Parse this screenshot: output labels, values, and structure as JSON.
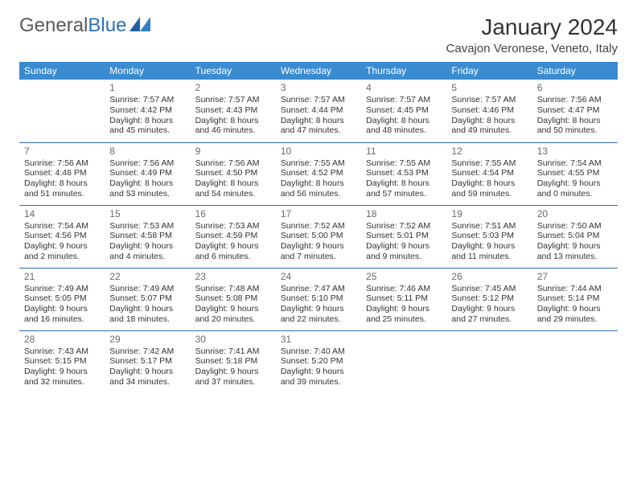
{
  "brand": {
    "part1": "General",
    "part2": "Blue"
  },
  "title": "January 2024",
  "location": "Cavajon Veronese, Veneto, Italy",
  "colors": {
    "header_bg": "#3b8bd0",
    "header_text": "#ffffff",
    "row_separator": "#2f6fb0",
    "body_text": "#333333",
    "daynum_text": "#6a6a6a",
    "brand_gray": "#5a5a5a",
    "brand_blue": "#2f6fb0",
    "background": "#ffffff"
  },
  "typography": {
    "title_fontsize": 28,
    "location_fontsize": 15,
    "dayheader_fontsize": 12,
    "cell_fontsize": 10.5,
    "font_family": "Arial"
  },
  "day_headers": [
    "Sunday",
    "Monday",
    "Tuesday",
    "Wednesday",
    "Thursday",
    "Friday",
    "Saturday"
  ],
  "weeks": [
    [
      {
        "empty": true
      },
      {
        "n": "1",
        "sunrise": "7:57 AM",
        "sunset": "4:42 PM",
        "dl1": "Daylight: 8 hours",
        "dl2": "and 45 minutes."
      },
      {
        "n": "2",
        "sunrise": "7:57 AM",
        "sunset": "4:43 PM",
        "dl1": "Daylight: 8 hours",
        "dl2": "and 46 minutes."
      },
      {
        "n": "3",
        "sunrise": "7:57 AM",
        "sunset": "4:44 PM",
        "dl1": "Daylight: 8 hours",
        "dl2": "and 47 minutes."
      },
      {
        "n": "4",
        "sunrise": "7:57 AM",
        "sunset": "4:45 PM",
        "dl1": "Daylight: 8 hours",
        "dl2": "and 48 minutes."
      },
      {
        "n": "5",
        "sunrise": "7:57 AM",
        "sunset": "4:46 PM",
        "dl1": "Daylight: 8 hours",
        "dl2": "and 49 minutes."
      },
      {
        "n": "6",
        "sunrise": "7:56 AM",
        "sunset": "4:47 PM",
        "dl1": "Daylight: 8 hours",
        "dl2": "and 50 minutes."
      }
    ],
    [
      {
        "n": "7",
        "sunrise": "7:56 AM",
        "sunset": "4:48 PM",
        "dl1": "Daylight: 8 hours",
        "dl2": "and 51 minutes."
      },
      {
        "n": "8",
        "sunrise": "7:56 AM",
        "sunset": "4:49 PM",
        "dl1": "Daylight: 8 hours",
        "dl2": "and 53 minutes."
      },
      {
        "n": "9",
        "sunrise": "7:56 AM",
        "sunset": "4:50 PM",
        "dl1": "Daylight: 8 hours",
        "dl2": "and 54 minutes."
      },
      {
        "n": "10",
        "sunrise": "7:55 AM",
        "sunset": "4:52 PM",
        "dl1": "Daylight: 8 hours",
        "dl2": "and 56 minutes."
      },
      {
        "n": "11",
        "sunrise": "7:55 AM",
        "sunset": "4:53 PM",
        "dl1": "Daylight: 8 hours",
        "dl2": "and 57 minutes."
      },
      {
        "n": "12",
        "sunrise": "7:55 AM",
        "sunset": "4:54 PM",
        "dl1": "Daylight: 8 hours",
        "dl2": "and 59 minutes."
      },
      {
        "n": "13",
        "sunrise": "7:54 AM",
        "sunset": "4:55 PM",
        "dl1": "Daylight: 9 hours",
        "dl2": "and 0 minutes."
      }
    ],
    [
      {
        "n": "14",
        "sunrise": "7:54 AM",
        "sunset": "4:56 PM",
        "dl1": "Daylight: 9 hours",
        "dl2": "and 2 minutes."
      },
      {
        "n": "15",
        "sunrise": "7:53 AM",
        "sunset": "4:58 PM",
        "dl1": "Daylight: 9 hours",
        "dl2": "and 4 minutes."
      },
      {
        "n": "16",
        "sunrise": "7:53 AM",
        "sunset": "4:59 PM",
        "dl1": "Daylight: 9 hours",
        "dl2": "and 6 minutes."
      },
      {
        "n": "17",
        "sunrise": "7:52 AM",
        "sunset": "5:00 PM",
        "dl1": "Daylight: 9 hours",
        "dl2": "and 7 minutes."
      },
      {
        "n": "18",
        "sunrise": "7:52 AM",
        "sunset": "5:01 PM",
        "dl1": "Daylight: 9 hours",
        "dl2": "and 9 minutes."
      },
      {
        "n": "19",
        "sunrise": "7:51 AM",
        "sunset": "5:03 PM",
        "dl1": "Daylight: 9 hours",
        "dl2": "and 11 minutes."
      },
      {
        "n": "20",
        "sunrise": "7:50 AM",
        "sunset": "5:04 PM",
        "dl1": "Daylight: 9 hours",
        "dl2": "and 13 minutes."
      }
    ],
    [
      {
        "n": "21",
        "sunrise": "7:49 AM",
        "sunset": "5:05 PM",
        "dl1": "Daylight: 9 hours",
        "dl2": "and 16 minutes."
      },
      {
        "n": "22",
        "sunrise": "7:49 AM",
        "sunset": "5:07 PM",
        "dl1": "Daylight: 9 hours",
        "dl2": "and 18 minutes."
      },
      {
        "n": "23",
        "sunrise": "7:48 AM",
        "sunset": "5:08 PM",
        "dl1": "Daylight: 9 hours",
        "dl2": "and 20 minutes."
      },
      {
        "n": "24",
        "sunrise": "7:47 AM",
        "sunset": "5:10 PM",
        "dl1": "Daylight: 9 hours",
        "dl2": "and 22 minutes."
      },
      {
        "n": "25",
        "sunrise": "7:46 AM",
        "sunset": "5:11 PM",
        "dl1": "Daylight: 9 hours",
        "dl2": "and 25 minutes."
      },
      {
        "n": "26",
        "sunrise": "7:45 AM",
        "sunset": "5:12 PM",
        "dl1": "Daylight: 9 hours",
        "dl2": "and 27 minutes."
      },
      {
        "n": "27",
        "sunrise": "7:44 AM",
        "sunset": "5:14 PM",
        "dl1": "Daylight: 9 hours",
        "dl2": "and 29 minutes."
      }
    ],
    [
      {
        "n": "28",
        "sunrise": "7:43 AM",
        "sunset": "5:15 PM",
        "dl1": "Daylight: 9 hours",
        "dl2": "and 32 minutes."
      },
      {
        "n": "29",
        "sunrise": "7:42 AM",
        "sunset": "5:17 PM",
        "dl1": "Daylight: 9 hours",
        "dl2": "and 34 minutes."
      },
      {
        "n": "30",
        "sunrise": "7:41 AM",
        "sunset": "5:18 PM",
        "dl1": "Daylight: 9 hours",
        "dl2": "and 37 minutes."
      },
      {
        "n": "31",
        "sunrise": "7:40 AM",
        "sunset": "5:20 PM",
        "dl1": "Daylight: 9 hours",
        "dl2": "and 39 minutes."
      },
      {
        "empty": true
      },
      {
        "empty": true
      },
      {
        "empty": true
      }
    ]
  ],
  "labels": {
    "sunrise_prefix": "Sunrise: ",
    "sunset_prefix": "Sunset: "
  }
}
